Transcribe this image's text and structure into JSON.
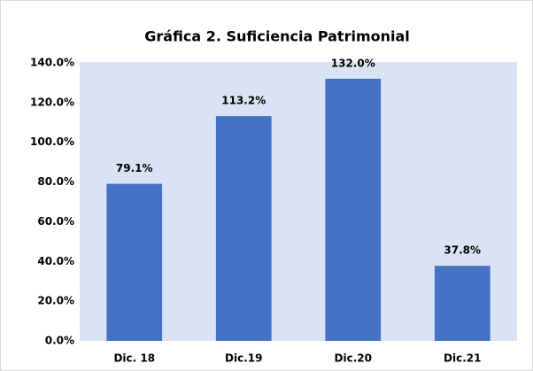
{
  "chart_data": {
    "type": "bar",
    "title": "Gráfica 2. Suficiencia Patrimonial",
    "categories": [
      "Dic. 18",
      "Dic.19",
      "Dic.20",
      "Dic.21"
    ],
    "values": [
      79.1,
      113.2,
      132.0,
      37.8
    ],
    "value_labels": [
      "79.1%",
      "113.2%",
      "132.0%",
      "37.8%"
    ],
    "color": "#4472c4",
    "ylim": [
      0,
      140
    ],
    "yticks": [
      {
        "value": 0,
        "label": "0.0%"
      },
      {
        "value": 20,
        "label": "20.0%"
      },
      {
        "value": 40,
        "label": "40.0%"
      },
      {
        "value": 60,
        "label": "60.0%"
      },
      {
        "value": 80,
        "label": "80.0%"
      },
      {
        "value": 100,
        "label": "100.0%"
      },
      {
        "value": 120,
        "label": "120.0%"
      },
      {
        "value": 140,
        "label": "140.0%"
      }
    ],
    "grid": false
  }
}
